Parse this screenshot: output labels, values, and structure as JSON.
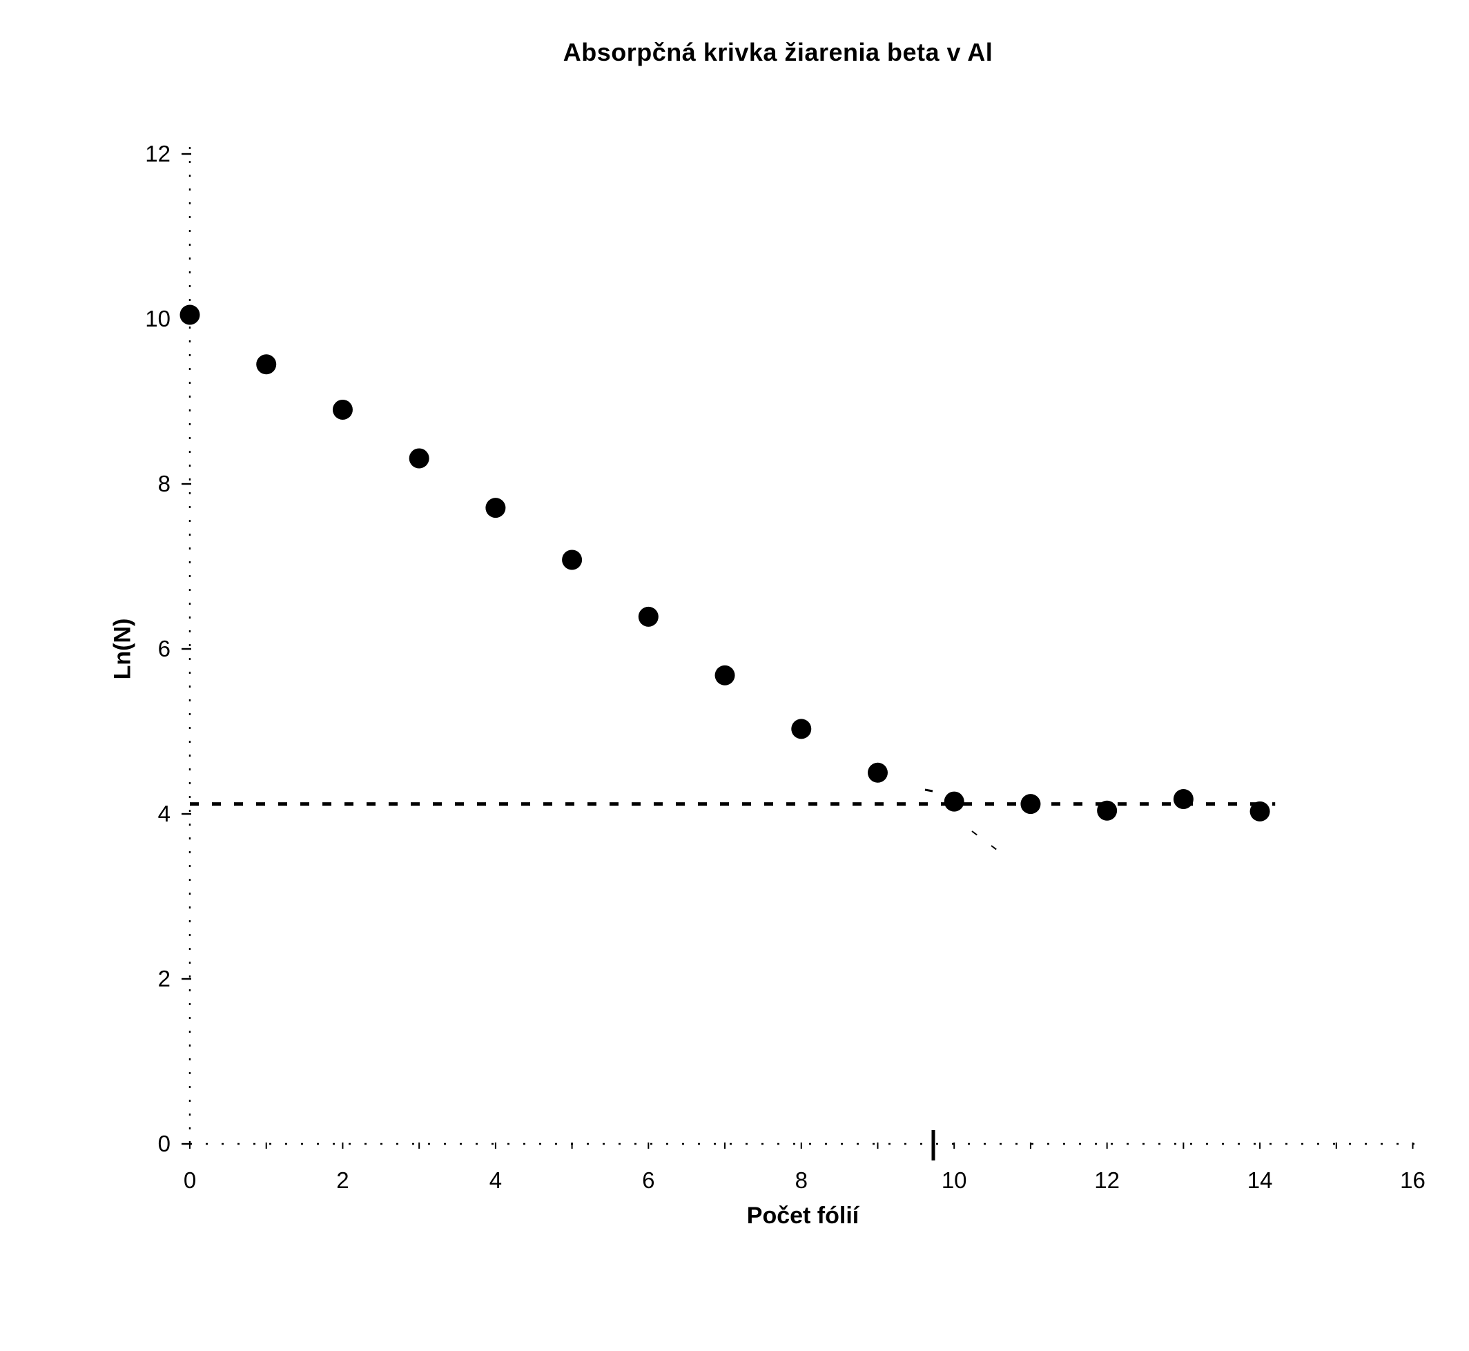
{
  "page": {
    "background": "#ffffff",
    "ink": "#000000"
  },
  "chart_data": {
    "type": "scatter",
    "title": "Absorpčná krivka žiarenia beta v Al",
    "xlabel": "Počet fólií",
    "ylabel": "Ln(N)",
    "xlim": [
      0,
      16
    ],
    "ylim": [
      0,
      12
    ],
    "x_tick_labels": [
      0,
      2,
      4,
      6,
      8,
      10,
      12,
      14,
      16
    ],
    "x_minor_ticks": [
      0,
      1,
      2,
      3,
      4,
      5,
      6,
      7,
      8,
      9,
      10,
      11,
      12,
      13,
      14,
      15,
      16
    ],
    "y_tick_labels": [
      0,
      2,
      4,
      6,
      8,
      10,
      12
    ],
    "grid": "off",
    "legend": "none",
    "marker_color": "#000000",
    "series": [
      {
        "name": "Ln(N)",
        "marker": "filled-circle",
        "points": [
          {
            "x": 0,
            "y": 10.05
          },
          {
            "x": 1,
            "y": 9.45
          },
          {
            "x": 2,
            "y": 8.9
          },
          {
            "x": 3,
            "y": 8.31
          },
          {
            "x": 4,
            "y": 7.71
          },
          {
            "x": 5,
            "y": 7.08
          },
          {
            "x": 6,
            "y": 6.39
          },
          {
            "x": 7,
            "y": 5.68
          },
          {
            "x": 8,
            "y": 5.03
          },
          {
            "x": 9,
            "y": 4.5
          },
          {
            "x": 10,
            "y": 4.15
          },
          {
            "x": 11,
            "y": 4.12
          },
          {
            "x": 12,
            "y": 4.04
          },
          {
            "x": 13,
            "y": 4.18
          },
          {
            "x": 14,
            "y": 4.03
          }
        ]
      }
    ],
    "reference_line": {
      "style": "dashed",
      "y": 4.12,
      "x_start": 0,
      "x_end": 14.2,
      "color": "#000000"
    },
    "scan_marks": [
      {
        "x1": 1352,
        "y1": 1637,
        "x2": 1352,
        "y2": 1681,
        "width": 5,
        "dash": ""
      },
      {
        "x1": 1408,
        "y1": 1204,
        "x2": 1464,
        "y2": 1246,
        "width": 2,
        "dash": "9 26"
      },
      {
        "x1": 1340,
        "y1": 1144,
        "x2": 1351,
        "y2": 1146,
        "width": 3,
        "dash": ""
      }
    ]
  }
}
